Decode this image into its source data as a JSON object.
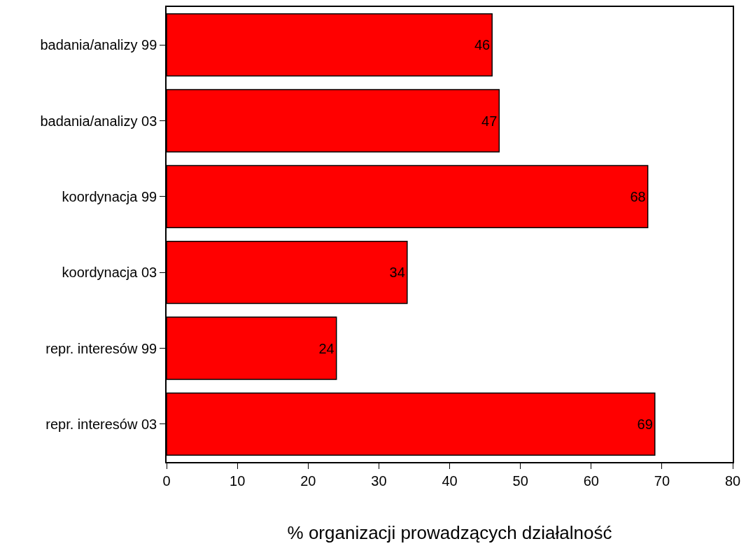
{
  "chart_data": {
    "type": "bar",
    "orientation": "horizontal",
    "xlabel": "% organizacji prowadzących działalność",
    "categories": [
      "badania/analizy 99",
      "badania/analizy 03",
      "koordynacja 99",
      "koordynacja 03",
      "repr. interesów 99",
      "repr. interesów 03"
    ],
    "values": [
      46,
      47,
      68,
      34,
      24,
      69
    ],
    "color": "#ff0000",
    "data_labels": true,
    "xlim": [
      0,
      80
    ],
    "xticks": [
      0,
      10,
      20,
      30,
      40,
      50,
      60,
      70,
      80
    ]
  }
}
